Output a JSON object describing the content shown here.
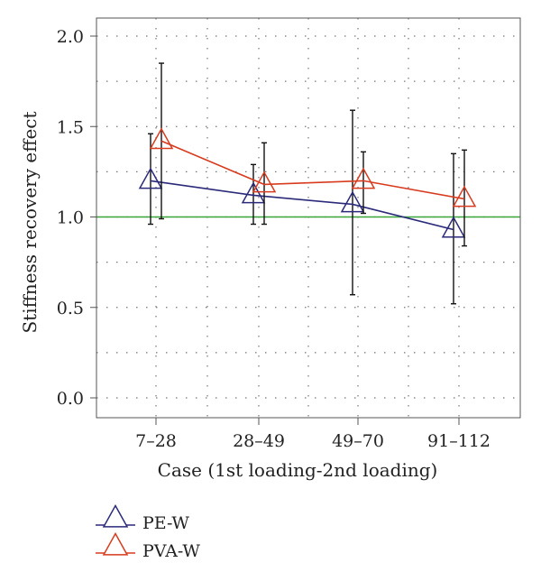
{
  "chart_data": {
    "type": "line",
    "title": "",
    "xlabel": "Case (1st loading-2nd loading)",
    "ylabel": "Stiffness recovery effect",
    "categories": [
      "7–28",
      "28–49",
      "49–70",
      "91–112"
    ],
    "ylim": [
      0,
      2.0
    ],
    "yticks": [
      "0.0",
      "0.5",
      "1.0",
      "1.5",
      "2.0"
    ],
    "grid": true,
    "grid_style": "dotted",
    "reference_line": {
      "y": 1.0,
      "color": "#3aa63a"
    },
    "legend_position": "bottom-left, below plot",
    "series": [
      {
        "name": "PE-W",
        "color": "#2b2a7a",
        "marker": "open-triangle",
        "values": [
          1.2,
          1.12,
          1.07,
          0.93
        ],
        "error_low": [
          0.96,
          0.96,
          0.57,
          0.52
        ],
        "error_high": [
          1.46,
          1.29,
          1.59,
          1.35
        ]
      },
      {
        "name": "PVA-W",
        "color": "#d83b1e",
        "marker": "open-triangle",
        "values": [
          1.42,
          1.18,
          1.2,
          1.1
        ],
        "error_low": [
          0.99,
          0.96,
          1.02,
          0.84
        ],
        "error_high": [
          1.85,
          1.41,
          1.36,
          1.37
        ]
      }
    ]
  }
}
